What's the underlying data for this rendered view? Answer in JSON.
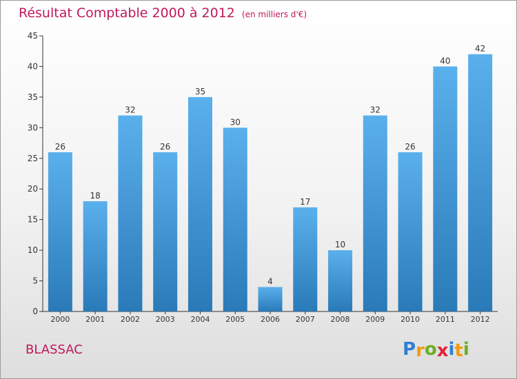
{
  "header": {
    "title": "Résultat Comptable 2000 à 2012",
    "subtitle": "(en milliers d'€)"
  },
  "footer": {
    "commune": "BLASSAC",
    "logo_text": "Proxiti",
    "logo_letters": [
      {
        "char": "P",
        "color": "#2f7fd6"
      },
      {
        "char": "r",
        "color": "#f29a0e"
      },
      {
        "char": "o",
        "color": "#6ab025"
      },
      {
        "char": "x",
        "color": "#e2233b"
      },
      {
        "char": "i",
        "color": "#2f7fd6"
      },
      {
        "char": "t",
        "color": "#f29a0e"
      },
      {
        "char": "i",
        "color": "#6ab025"
      }
    ]
  },
  "colors": {
    "bar_top": "#5ab0ec",
    "bar_bottom": "#2a7ab8",
    "title": "#c0185a",
    "axis": "#333333"
  },
  "chart_data": {
    "type": "bar",
    "title": "Résultat Comptable 2000 à 2012",
    "subtitle": "(en milliers d'€)",
    "categories": [
      "2000",
      "2001",
      "2002",
      "2003",
      "2004",
      "2005",
      "2006",
      "2007",
      "2008",
      "2009",
      "2010",
      "2011",
      "2012"
    ],
    "values": [
      26,
      18,
      32,
      26,
      35,
      30,
      4,
      17,
      10,
      32,
      26,
      40,
      42
    ],
    "ylim": [
      0,
      45
    ],
    "yticks": [
      0,
      5,
      10,
      15,
      20,
      25,
      30,
      35,
      40,
      45
    ],
    "xlabel": "",
    "ylabel": "",
    "grid": false,
    "data_labels": true
  }
}
